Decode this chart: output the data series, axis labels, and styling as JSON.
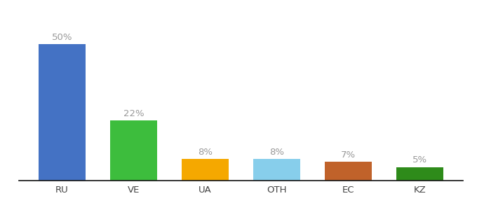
{
  "categories": [
    "RU",
    "VE",
    "UA",
    "OTH",
    "EC",
    "KZ"
  ],
  "values": [
    50,
    22,
    8,
    8,
    7,
    5
  ],
  "bar_colors": [
    "#4472c4",
    "#3dbd3d",
    "#f5a800",
    "#87ceeb",
    "#c0622a",
    "#2e8b1a"
  ],
  "labels": [
    "50%",
    "22%",
    "8%",
    "8%",
    "7%",
    "5%"
  ],
  "background_color": "#ffffff",
  "ylim": [
    0,
    60
  ],
  "bar_width": 0.65,
  "label_fontsize": 9.5,
  "tick_fontsize": 9.5,
  "label_color": "#999999",
  "tick_color": "#444444"
}
